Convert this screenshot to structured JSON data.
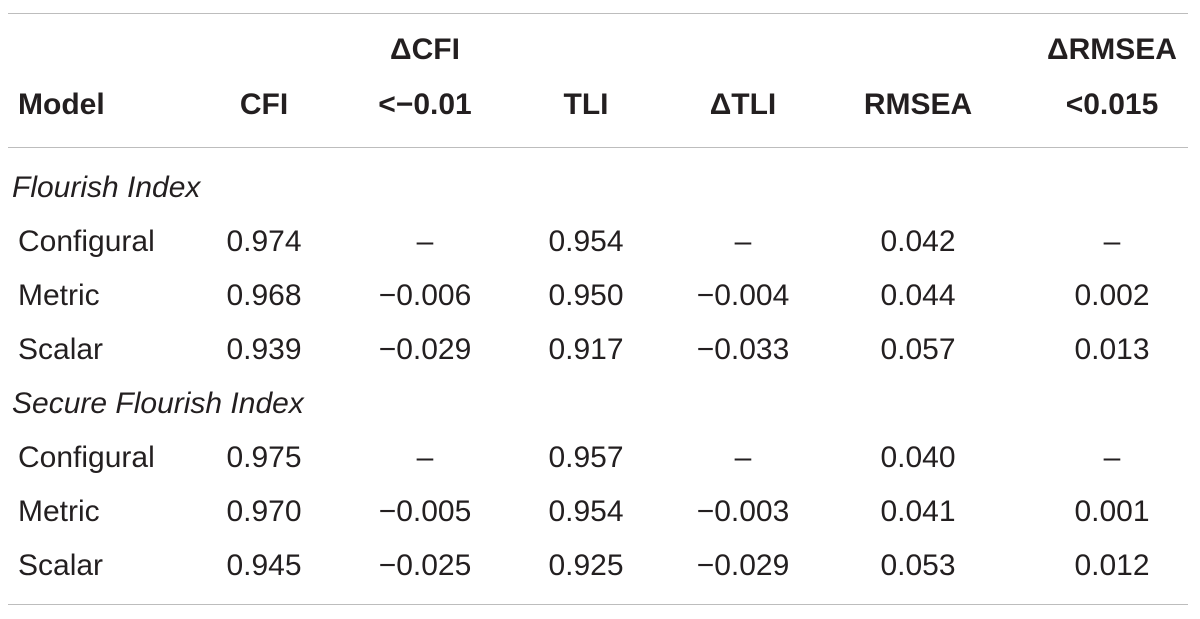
{
  "table": {
    "headers": {
      "model": "Model",
      "cfi": "CFI",
      "dcfi_line1": "ΔCFI",
      "dcfi_line2": "<−0.01",
      "tli": "TLI",
      "dtli": "ΔTLI",
      "rmsea": "RMSEA",
      "drmsea_line1": "ΔRMSEA",
      "drmsea_line2": "<0.015"
    },
    "sections": [
      {
        "title": "Flourish Index",
        "rows": [
          {
            "model": "Configural",
            "cfi": "0.974",
            "dcfi": "–",
            "tli": "0.954",
            "dtli": "–",
            "rmsea": "0.042",
            "drmsea": "–"
          },
          {
            "model": "Metric",
            "cfi": "0.968",
            "dcfi": "−0.006",
            "tli": "0.950",
            "dtli": "−0.004",
            "rmsea": "0.044",
            "drmsea": "0.002"
          },
          {
            "model": "Scalar",
            "cfi": "0.939",
            "dcfi": "−0.029",
            "tli": "0.917",
            "dtli": "−0.033",
            "rmsea": "0.057",
            "drmsea": "0.013"
          }
        ]
      },
      {
        "title": "Secure Flourish Index",
        "rows": [
          {
            "model": "Configural",
            "cfi": "0.975",
            "dcfi": "–",
            "tli": "0.957",
            "dtli": "–",
            "rmsea": "0.040",
            "drmsea": "–"
          },
          {
            "model": "Metric",
            "cfi": "0.970",
            "dcfi": "−0.005",
            "tli": "0.954",
            "dtli": "−0.003",
            "rmsea": "0.041",
            "drmsea": "0.001"
          },
          {
            "model": "Scalar",
            "cfi": "0.945",
            "dcfi": "−0.025",
            "tli": "0.925",
            "dtli": "−0.029",
            "rmsea": "0.053",
            "drmsea": "0.012"
          }
        ]
      }
    ]
  }
}
